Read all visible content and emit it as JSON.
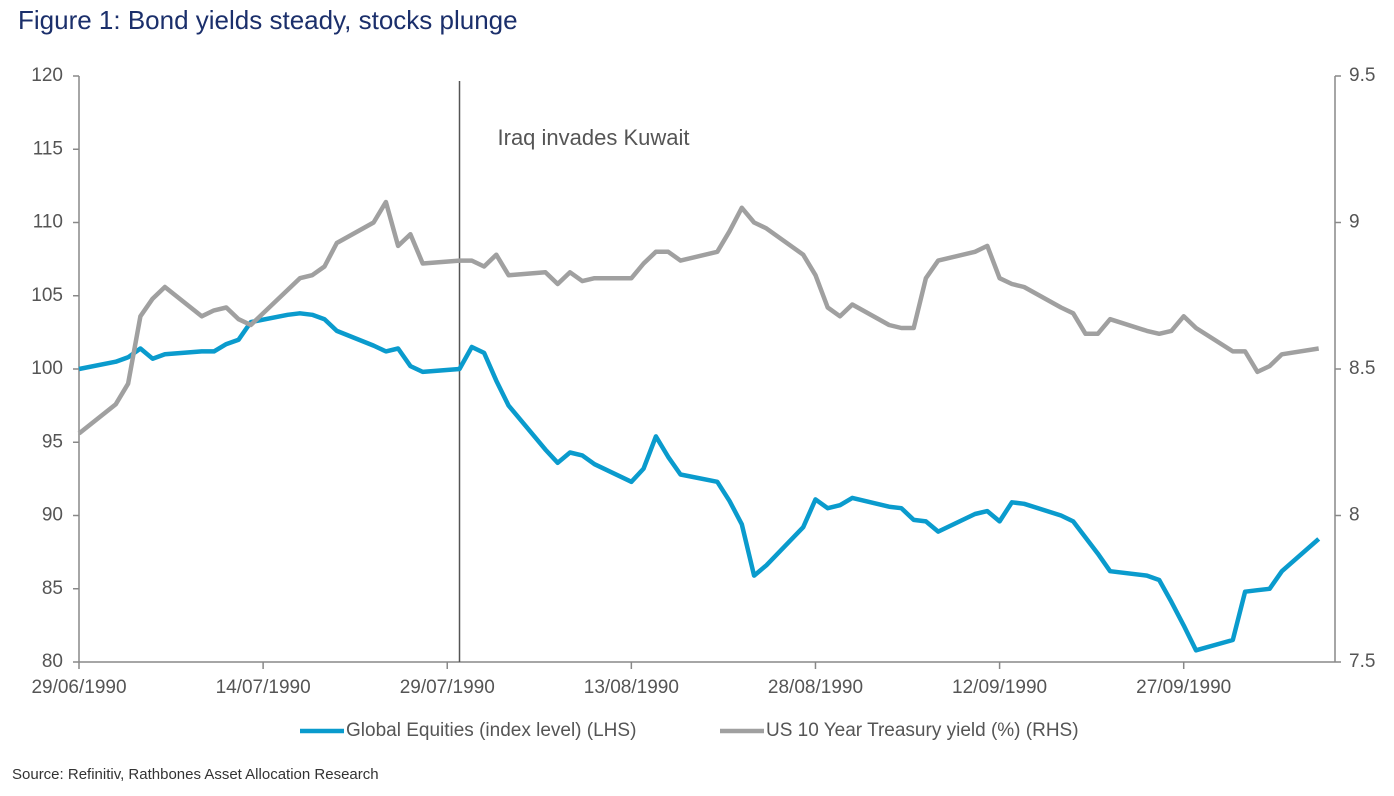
{
  "chart_data": {
    "type": "line",
    "title": "Figure 1: Bond yields steady, stocks plunge",
    "source": "Source: Refinitiv, Rathbones Asset Allocation Research",
    "x": [
      "29/06/1990",
      "02/07/1990",
      "03/07/1990",
      "04/07/1990",
      "05/07/1990",
      "06/07/1990",
      "09/07/1990",
      "10/07/1990",
      "11/07/1990",
      "12/07/1990",
      "13/07/1990",
      "16/07/1990",
      "17/07/1990",
      "18/07/1990",
      "19/07/1990",
      "20/07/1990",
      "23/07/1990",
      "24/07/1990",
      "25/07/1990",
      "26/07/1990",
      "27/07/1990",
      "30/07/1990",
      "31/07/1990",
      "01/08/1990",
      "02/08/1990",
      "03/08/1990",
      "06/08/1990",
      "07/08/1990",
      "08/08/1990",
      "09/08/1990",
      "10/08/1990",
      "13/08/1990",
      "14/08/1990",
      "15/08/1990",
      "16/08/1990",
      "17/08/1990",
      "20/08/1990",
      "21/08/1990",
      "22/08/1990",
      "23/08/1990",
      "24/08/1990",
      "27/08/1990",
      "28/08/1990",
      "29/08/1990",
      "30/08/1990",
      "31/08/1990",
      "03/09/1990",
      "04/09/1990",
      "05/09/1990",
      "06/09/1990",
      "07/09/1990",
      "10/09/1990",
      "11/09/1990",
      "12/09/1990",
      "13/09/1990",
      "14/09/1990",
      "17/09/1990",
      "18/09/1990",
      "19/09/1990",
      "20/09/1990",
      "21/09/1990",
      "24/09/1990",
      "25/09/1990",
      "26/09/1990",
      "27/09/1990",
      "28/09/1990",
      "01/10/1990",
      "02/10/1990",
      "03/10/1990",
      "04/10/1990",
      "05/10/1990",
      "08/10/1990"
    ],
    "series": [
      {
        "name": "Global Equities (index level) (LHS)",
        "color": "#0a9bcd",
        "axis": "y",
        "values": [
          100.0,
          100.5,
          100.8,
          101.4,
          100.7,
          101.0,
          101.2,
          101.2,
          101.7,
          102.0,
          103.2,
          103.7,
          103.8,
          103.7,
          103.4,
          102.6,
          101.6,
          101.2,
          101.4,
          100.2,
          99.8,
          100.0,
          101.5,
          101.1,
          99.2,
          97.5,
          94.5,
          93.6,
          94.3,
          94.1,
          93.5,
          92.3,
          93.2,
          95.4,
          94.0,
          92.8,
          92.3,
          91.0,
          89.4,
          85.9,
          86.6,
          89.2,
          91.1,
          90.5,
          90.7,
          91.2,
          90.6,
          90.5,
          89.7,
          89.6,
          88.9,
          90.1,
          90.3,
          89.6,
          90.9,
          90.8,
          90.0,
          89.6,
          88.5,
          87.4,
          86.2,
          85.9,
          85.6,
          84.1,
          82.5,
          80.8,
          81.5,
          84.8,
          84.9,
          85.0,
          86.2,
          88.4
        ]
      },
      {
        "name": "US 10 Year Treasury yield (%) (RHS)",
        "color": "#a0a0a0",
        "axis": "y2",
        "values": [
          8.28,
          8.38,
          8.45,
          8.68,
          8.74,
          8.78,
          8.68,
          8.7,
          8.71,
          8.67,
          8.65,
          8.77,
          8.81,
          8.82,
          8.85,
          8.93,
          9.0,
          9.07,
          8.92,
          8.96,
          8.86,
          8.87,
          8.87,
          8.85,
          8.89,
          8.82,
          8.83,
          8.79,
          8.83,
          8.8,
          8.81,
          8.81,
          8.86,
          8.9,
          8.9,
          8.87,
          8.9,
          8.97,
          9.05,
          9.0,
          8.98,
          8.89,
          8.82,
          8.71,
          8.68,
          8.72,
          8.65,
          8.64,
          8.64,
          8.81,
          8.87,
          8.9,
          8.92,
          8.81,
          8.79,
          8.78,
          8.71,
          8.69,
          8.62,
          8.62,
          8.67,
          8.63,
          8.62,
          8.63,
          8.68,
          8.64,
          8.56,
          8.56,
          8.49,
          8.51,
          8.55,
          8.57
        ]
      }
    ],
    "xlim": [
      "29/06/1990",
      "09/10/1990"
    ],
    "xticks": [
      "29/06/1990",
      "14/07/1990",
      "29/07/1990",
      "13/08/1990",
      "28/08/1990",
      "12/09/1990",
      "27/09/1990"
    ],
    "ylim": [
      80,
      120
    ],
    "yticks": [
      80,
      85,
      90,
      95,
      100,
      105,
      110,
      115,
      120
    ],
    "y2lim": [
      7.5,
      9.5
    ],
    "y2ticks": [
      7.5,
      8,
      8.5,
      9,
      9.5
    ],
    "annotations": [
      {
        "text": "Iraq invades Kuwait",
        "x": "30/07/1990"
      }
    ],
    "legend": "bottom",
    "grid": false
  }
}
